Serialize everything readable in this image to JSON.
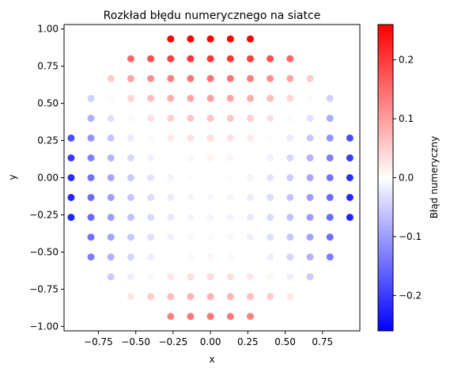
{
  "chart_data": {
    "type": "scatter",
    "title": "Rozkład błędu numerycznego na siatce",
    "xlabel": "x",
    "ylabel": "y",
    "xlim": [
      -0.98,
      1.0
    ],
    "ylim": [
      -1.03,
      1.03
    ],
    "xticks": [
      -0.75,
      -0.5,
      -0.25,
      0.0,
      0.25,
      0.5,
      0.75
    ],
    "xtick_labels": [
      "−0.75",
      "−0.50",
      "−0.25",
      "0.00",
      "0.25",
      "0.50",
      "0.75"
    ],
    "yticks": [
      -1.0,
      -0.75,
      -0.5,
      -0.25,
      0.0,
      0.25,
      0.5,
      0.75,
      1.0
    ],
    "ytick_labels": [
      "−1.00",
      "−0.75",
      "−0.50",
      "−0.25",
      "0.00",
      "0.25",
      "0.50",
      "0.75",
      "1.00"
    ],
    "grid": false,
    "colorbar": {
      "label": "Błąd numeryczny",
      "colormap": "bwr",
      "vmin": -0.26,
      "vmax": 0.26,
      "ticks": [
        -0.2,
        -0.1,
        0.0,
        0.1,
        0.2
      ],
      "tick_labels": [
        "−0.2",
        "−0.1",
        "0.0",
        "0.1",
        "0.2"
      ]
    },
    "grid_step": 0.1333,
    "domain": "unit disk",
    "point_color_values": "numerical error per grid point (see script)"
  },
  "colors": {
    "low": "#0000ff",
    "mid": "#ffffff",
    "high": "#ff0000"
  }
}
